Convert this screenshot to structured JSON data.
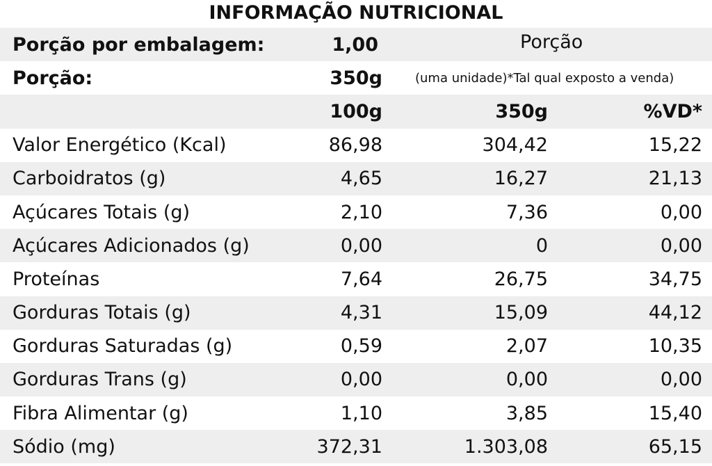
{
  "title": "INFORMAÇÃO NUTRICIONAL",
  "header": {
    "servings_label": "Porção por embalagem:",
    "servings_value": "1,00",
    "porcao_heading": "Porção",
    "portion_label": "Porção:",
    "portion_value": "350g",
    "portion_note": "(uma unidade)*Tal qual exposto a venda)"
  },
  "columns": {
    "per100": "100g",
    "per350": "350g",
    "vd": "%VD*"
  },
  "rows": [
    {
      "name": "Valor Energético (Kcal)",
      "v100": "86,98",
      "v350": "304,42",
      "vd": "15,22"
    },
    {
      "name": "Carboidratos (g)",
      "v100": "4,65",
      "v350": "16,27",
      "vd": "21,13"
    },
    {
      "name": "Açúcares Totais (g)",
      "v100": "2,10",
      "v350": "7,36",
      "vd": "0,00"
    },
    {
      "name": "Açúcares Adicionados (g)",
      "v100": "0,00",
      "v350": "0",
      "vd": "0,00"
    },
    {
      "name": "Proteínas",
      "v100": "7,64",
      "v350": "26,75",
      "vd": "34,75"
    },
    {
      "name": "Gorduras Totais (g)",
      "v100": "4,31",
      "v350": "15,09",
      "vd": "44,12"
    },
    {
      "name": "Gorduras Saturadas (g)",
      "v100": "0,59",
      "v350": "2,07",
      "vd": "10,35"
    },
    {
      "name": "Gorduras Trans (g)",
      "v100": "0,00",
      "v350": "0,00",
      "vd": "0,00"
    },
    {
      "name": "Fibra Alimentar (g)",
      "v100": "1,10",
      "v350": "3,85",
      "vd": "15,40"
    },
    {
      "name": "Sódio (mg)",
      "v100": "372,31",
      "v350": "1.303,08",
      "vd": "65,15"
    }
  ],
  "colors": {
    "shade": "#eeeeee",
    "text": "#111111",
    "background": "#ffffff"
  }
}
